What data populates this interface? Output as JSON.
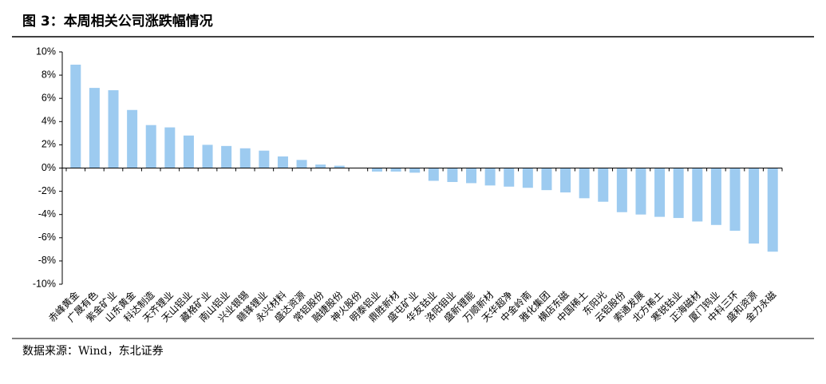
{
  "chart_data": {
    "type": "bar",
    "title": "图 3：本周相关公司涨跌幅情况",
    "source": "数据来源：Wind，东北证券",
    "categories": [
      "赤峰黄金",
      "广晟有色",
      "紫金矿业",
      "山东黄金",
      "科达制造",
      "天齐锂业",
      "天山铝业",
      "藏格矿业",
      "南山铝业",
      "兴业银锡",
      "赣锋锂业",
      "永兴材料",
      "盛达资源",
      "常铝股份",
      "融捷股份",
      "神火股份",
      "明泰铝业",
      "鼎胜新材",
      "盛屯矿业",
      "华友钴业",
      "洛阳钼业",
      "盛新锂能",
      "万顺新材",
      "天华超净",
      "中金岭南",
      "雅化集团",
      "横店东磁",
      "中国稀土",
      "东阳光",
      "云铝股份",
      "索通发展",
      "北方稀土",
      "寒锐钴业",
      "正海磁材",
      "厦门钨业",
      "中科三环",
      "盛和资源",
      "金力永磁"
    ],
    "values": [
      8.9,
      6.9,
      6.7,
      5.0,
      3.7,
      3.5,
      2.8,
      2.0,
      1.9,
      1.7,
      1.5,
      1.0,
      0.7,
      0.3,
      0.2,
      0.0,
      -0.3,
      -0.3,
      -0.4,
      -1.1,
      -1.2,
      -1.3,
      -1.5,
      -1.6,
      -1.7,
      -1.9,
      -2.1,
      -2.6,
      -2.9,
      -3.8,
      -4.0,
      -4.2,
      -4.3,
      -4.6,
      -4.9,
      -5.4,
      -6.5,
      -7.2
    ],
    "color": "#9dcbf0",
    "ylim": [
      -10,
      10
    ],
    "yticks": [
      {
        "value": -10,
        "label": "-10%"
      },
      {
        "value": -8,
        "label": "-8%"
      },
      {
        "value": -6,
        "label": "-6%"
      },
      {
        "value": -4,
        "label": "-4%"
      },
      {
        "value": -2,
        "label": "-2%"
      },
      {
        "value": 0,
        "label": "0%"
      },
      {
        "value": 2,
        "label": "2%"
      },
      {
        "value": 4,
        "label": "4%"
      },
      {
        "value": 6,
        "label": "6%"
      },
      {
        "value": 8,
        "label": "8%"
      },
      {
        "value": 10,
        "label": "10%"
      }
    ],
    "grid": false
  }
}
